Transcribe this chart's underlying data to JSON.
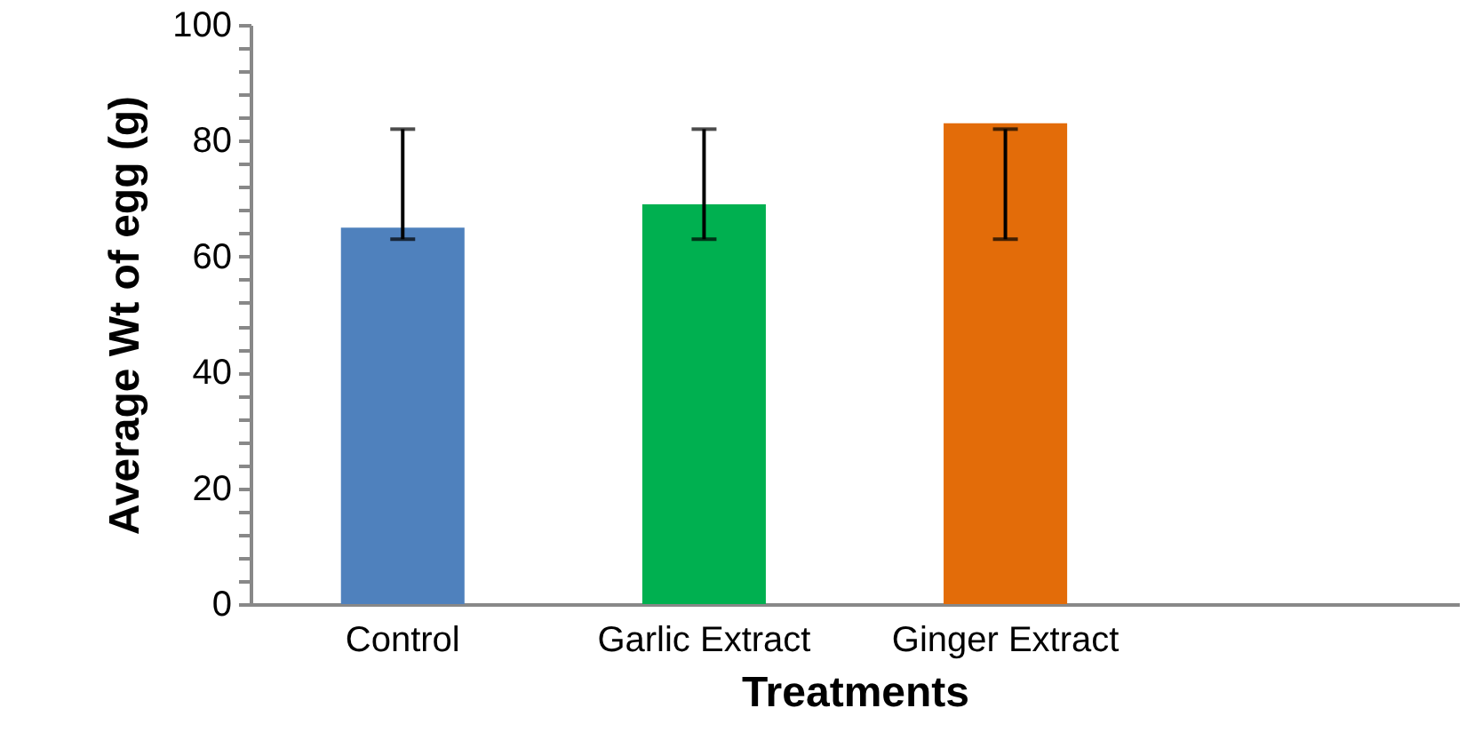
{
  "chart_data": {
    "type": "bar",
    "xlabel": "Treatments",
    "ylabel": "Average Wt of egg (g)",
    "categories": [
      "Control",
      "Garlic Extract",
      "Ginger Extract",
      null
    ],
    "values": [
      65,
      69,
      83,
      null
    ],
    "colors": [
      "#4f81bd",
      "#00b050",
      "#e36c09",
      null
    ],
    "errors": [
      [
        63,
        82
      ],
      [
        63,
        82
      ],
      [
        63,
        82
      ],
      null
    ],
    "ylim": [
      0,
      100
    ],
    "yticks": [
      0,
      {
        "value": 4,
        "label": null
      },
      {
        "value": 8,
        "label": null
      },
      {
        "value": 12,
        "label": null
      },
      {
        "value": 16,
        "label": null
      },
      20,
      {
        "value": 24,
        "label": null
      },
      {
        "value": 28,
        "label": null
      },
      {
        "value": 32,
        "label": null
      },
      {
        "value": 36,
        "label": null
      },
      40,
      {
        "value": 44,
        "label": null
      },
      {
        "value": 48,
        "label": null
      },
      {
        "value": 52,
        "label": null
      },
      {
        "value": 56,
        "label": null
      },
      60,
      {
        "value": 64,
        "label": null
      },
      {
        "value": 68,
        "label": null
      },
      {
        "value": 72,
        "label": null
      },
      {
        "value": 76,
        "label": null
      },
      80,
      {
        "value": 84,
        "label": null
      },
      {
        "value": 88,
        "label": null
      },
      {
        "value": 92,
        "label": null
      },
      {
        "value": 96,
        "label": null
      },
      100
    ],
    "grid": false
  }
}
